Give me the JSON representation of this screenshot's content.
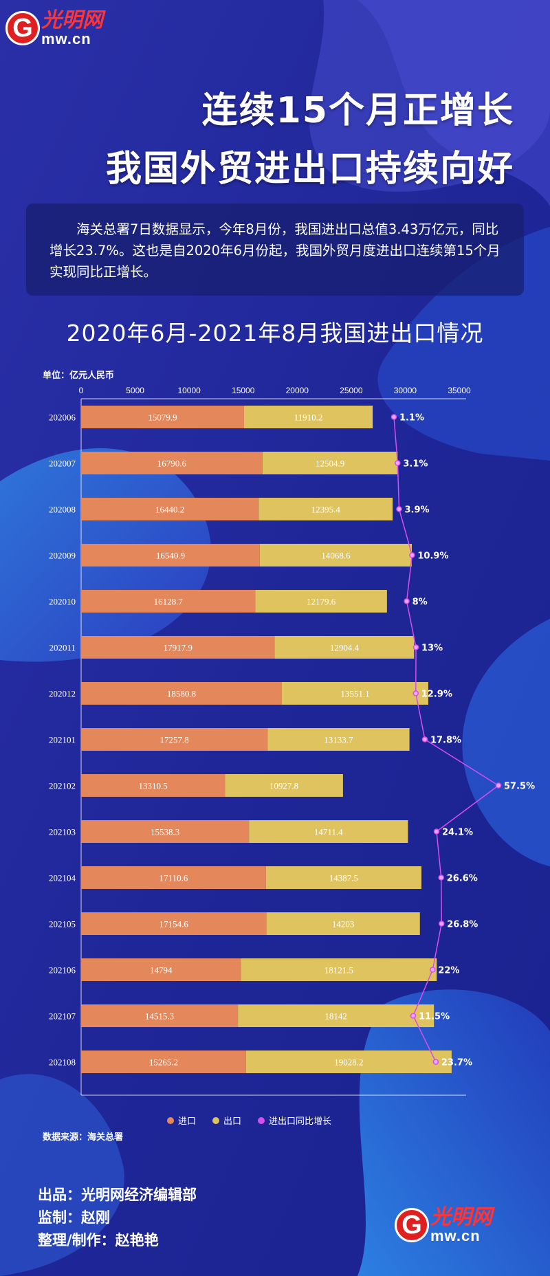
{
  "logo": {
    "letter": "G",
    "cn": "光明网",
    "en": "mw.cn"
  },
  "headline": {
    "line1": "连续15个月正增长",
    "line2": "我国外贸进出口持续向好"
  },
  "intro": "海关总署7日数据显示，今年8月份，我国进出口总值3.43万亿元，同比增长23.7%。这也是自2020年6月份起，我国外贸月度进出口连续第15个月实现同比正增长。",
  "chart_title": "2020年6月-2021年8月我国进出口情况",
  "credits": {
    "line1": "出品：光明网经济编辑部",
    "line2": "监制：赵刚",
    "line3": "整理/制作：赵艳艳"
  },
  "colors": {
    "import": "#e4875a",
    "export": "#dfc35f",
    "growth": "#d84cf0",
    "background": "#1e2a9a"
  },
  "chart_data": {
    "type": "bar",
    "orientation": "horizontal",
    "stacked": true,
    "unit_label": "单位：亿元人民币",
    "source": "数据来源：海关总署",
    "xlim": [
      0,
      35000
    ],
    "xticks": [
      0,
      5000,
      10000,
      15000,
      20000,
      25000,
      30000,
      35000
    ],
    "categories": [
      "202006",
      "202007",
      "202008",
      "202009",
      "202010",
      "202011",
      "202012",
      "202101",
      "202102",
      "202103",
      "202104",
      "202105",
      "202106",
      "202107",
      "202108"
    ],
    "series": [
      {
        "name": "进口",
        "values": [
          15079.9,
          16790.6,
          16440.2,
          16540.9,
          16128.7,
          17917.9,
          18580.8,
          17257.8,
          13310.5,
          15538.3,
          17110.6,
          17154.6,
          14794,
          14515.3,
          15265.2
        ]
      },
      {
        "name": "出口",
        "values": [
          11910.2,
          12504.9,
          12395.4,
          14068.6,
          12179.6,
          12904.4,
          13551.1,
          13133.7,
          10927.8,
          14711.4,
          14387.5,
          14203,
          18121.5,
          18142,
          19028.2
        ]
      }
    ],
    "line_series": {
      "name": "进出口同比增长",
      "values": [
        1.1,
        3.1,
        3.9,
        10.9,
        8,
        13,
        12.9,
        17.8,
        57.5,
        24.1,
        26.6,
        26.8,
        22,
        11.5,
        23.7
      ],
      "labels": [
        "1.1%",
        "3.1%",
        "3.9%",
        "10.9%",
        "8%",
        "13%",
        "12.9%",
        "17.8%",
        "57.5%",
        "24.1%",
        "26.6%",
        "26.8%",
        "22%",
        "11.5%",
        "23.7%"
      ]
    },
    "legend": [
      "进口",
      "出口",
      "进出口同比增长"
    ],
    "legend_position": "bottom"
  }
}
